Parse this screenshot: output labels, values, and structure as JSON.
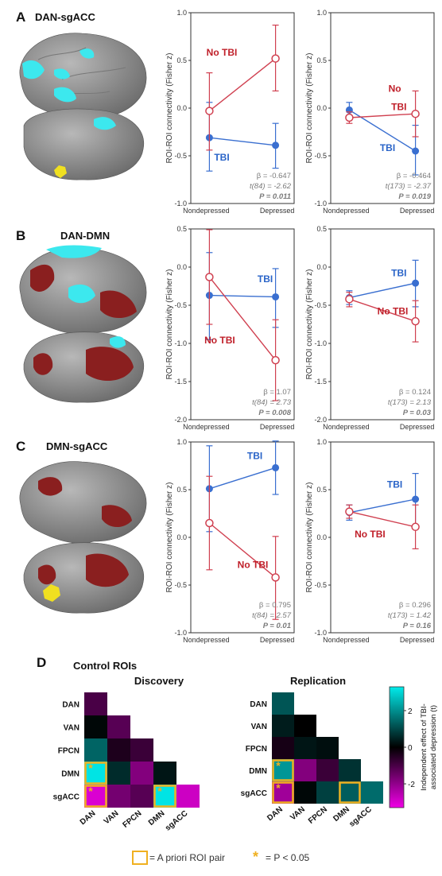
{
  "panels": {
    "A": {
      "letter": "A",
      "title": "DAN-sgACC"
    },
    "B": {
      "letter": "B",
      "title": "DAN-DMN"
    },
    "C": {
      "letter": "C",
      "title": "DMN-sgACC"
    },
    "D": {
      "letter": "D",
      "title": "Control ROIs"
    }
  },
  "colors": {
    "tbi": "#3a6fd0",
    "no_tbi": "#d04050",
    "no_tbi_label": "#c0202a",
    "tbi_label": "#2a64c8",
    "stats_text": "#7a7a7a",
    "brain_gray": "#9a9a9a",
    "cyan": "#3ce8ee",
    "dark_red": "#8a1f1f",
    "yellow": "#f0e020",
    "outline_gold": "#f0b020"
  },
  "chart_data": [
    {
      "id": "A-discovery",
      "type": "line",
      "ylabel": "ROI-ROI connectivity (Fisher z)",
      "ylim": [
        -1.0,
        1.0
      ],
      "yticks": [
        "1.0",
        "0.5",
        "0.0",
        "-0.5",
        "-1.0"
      ],
      "categories": [
        "Nondepressed",
        "Depressed"
      ],
      "series": [
        {
          "name": "TBI",
          "values": [
            -0.31,
            -0.39
          ],
          "err_low": [
            -0.66,
            -0.63
          ],
          "err_high": [
            0.06,
            -0.16
          ]
        },
        {
          "name": "No TBI",
          "values": [
            -0.03,
            0.52
          ],
          "err_low": [
            -0.44,
            0.18
          ],
          "err_high": [
            0.37,
            0.87
          ]
        }
      ],
      "label_TBI": "TBI",
      "label_NoTBI": "No TBI",
      "stats": {
        "beta": "β = -0.647",
        "t": "t(84) = -2.62",
        "p": "P = 0.011"
      }
    },
    {
      "id": "A-replication",
      "type": "line",
      "ylabel": "ROI-ROI connectivity (Fisher z)",
      "ylim": [
        -1.0,
        1.0
      ],
      "yticks": [
        "1.0",
        "0.5",
        "0.0",
        "-0.5",
        "-1.0"
      ],
      "categories": [
        "Nondepressed",
        "Depressed"
      ],
      "series": [
        {
          "name": "TBI",
          "values": [
            -0.02,
            -0.45
          ],
          "err_low": [
            -0.11,
            -0.7
          ],
          "err_high": [
            0.06,
            -0.18
          ]
        },
        {
          "name": "No TBI",
          "values": [
            -0.1,
            -0.06
          ],
          "err_low": [
            -0.16,
            -0.3
          ],
          "err_high": [
            -0.04,
            0.18
          ]
        }
      ],
      "label_TBI": "TBI",
      "label_NoTBI_1": "No",
      "label_NoTBI_2": "TBI",
      "stats": {
        "beta": "β = -0.464",
        "t": "t(173) = -2.37",
        "p": "P = 0.019"
      }
    },
    {
      "id": "B-discovery",
      "type": "line",
      "ylabel": "ROI-ROI connectivity (Fisher z)",
      "ylim": [
        -2.0,
        0.5
      ],
      "yticks": [
        "0.5",
        "0.0",
        "-0.5",
        "-1.0",
        "-1.5",
        "-2.0"
      ],
      "categories": [
        "Nondepressed",
        "Depressed"
      ],
      "series": [
        {
          "name": "TBI",
          "values": [
            -0.37,
            -0.39
          ],
          "err_low": [
            -0.95,
            -0.79
          ],
          "err_high": [
            0.19,
            -0.02
          ]
        },
        {
          "name": "No TBI",
          "values": [
            -0.13,
            -1.22
          ],
          "err_low": [
            -0.75,
            -1.75
          ],
          "err_high": [
            0.49,
            -0.69
          ]
        }
      ],
      "label_TBI": "TBI",
      "label_NoTBI": "No TBI",
      "stats": {
        "beta": "β = 1.07",
        "t": "t(84) = 2.73",
        "p": "P = 0.008"
      }
    },
    {
      "id": "B-replication",
      "type": "line",
      "ylabel": "ROI-ROI connectivity (Fisher z)",
      "ylim": [
        -2.0,
        0.5
      ],
      "yticks": [
        "0.5",
        "0.0",
        "-0.5",
        "-1.0",
        "-1.5",
        "-2.0"
      ],
      "categories": [
        "Nondepressed",
        "Depressed"
      ],
      "series": [
        {
          "name": "TBI",
          "values": [
            -0.4,
            -0.21
          ],
          "err_low": [
            -0.49,
            -0.52
          ],
          "err_high": [
            -0.31,
            0.09
          ]
        },
        {
          "name": "No TBI",
          "values": [
            -0.42,
            -0.71
          ],
          "err_low": [
            -0.52,
            -0.98
          ],
          "err_high": [
            -0.33,
            -0.44
          ]
        }
      ],
      "label_TBI": "TBI",
      "label_NoTBI": "No TBI",
      "stats": {
        "beta": "β = 0.124",
        "t": "t(173) = 2.13",
        "p": "P = 0.03"
      }
    },
    {
      "id": "C-discovery",
      "type": "line",
      "ylabel": "ROI-ROI connectivity (Fisher z)",
      "ylim": [
        -1.0,
        1.0
      ],
      "yticks": [
        "1.0",
        "0.5",
        "0.0",
        "-0.5",
        "-1.0"
      ],
      "categories": [
        "Nondepressed",
        "Depressed"
      ],
      "series": [
        {
          "name": "TBI",
          "values": [
            0.51,
            0.73
          ],
          "err_low": [
            0.06,
            0.45
          ],
          "err_high": [
            0.96,
            1.01
          ]
        },
        {
          "name": "No TBI",
          "values": [
            0.15,
            -0.42
          ],
          "err_low": [
            -0.34,
            -0.86
          ],
          "err_high": [
            0.64,
            0.01
          ]
        }
      ],
      "label_TBI": "TBI",
      "label_NoTBI": "No TBI",
      "stats": {
        "beta": "β = 0.795",
        "t": "t(84) = 2.57",
        "p": "P = 0.01"
      }
    },
    {
      "id": "C-replication",
      "type": "line",
      "ylabel": "ROI-ROI connectivity (Fisher z)",
      "ylim": [
        -1.0,
        1.0
      ],
      "yticks": [
        "1.0",
        "0.5",
        "0.0",
        "-0.5",
        "-1.0"
      ],
      "categories": [
        "Nondepressed",
        "Depressed"
      ],
      "series": [
        {
          "name": "TBI",
          "values": [
            0.26,
            0.4
          ],
          "err_low": [
            0.18,
            0.13
          ],
          "err_high": [
            0.34,
            0.67
          ]
        },
        {
          "name": "No TBI",
          "values": [
            0.27,
            0.11
          ],
          "err_low": [
            0.2,
            -0.12
          ],
          "err_high": [
            0.34,
            0.34
          ]
        }
      ],
      "label_TBI": "TBI",
      "label_NoTBI": "No TBI",
      "stats": {
        "beta": "β = 0.296",
        "t": "t(173) = 1.42",
        "p": "P = 0.16"
      }
    },
    {
      "id": "D-discovery",
      "type": "heatmap",
      "title": "Discovery",
      "rows": [
        "DAN",
        "VAN",
        "FPCN",
        "DMN",
        "sgACC"
      ],
      "cols": [
        "DAN",
        "VAN",
        "FPCN",
        "DMN",
        "sgACC"
      ],
      "values": [
        [
          -1.0
        ],
        [
          0.1,
          -1.2
        ],
        [
          1.4,
          -0.4,
          -0.8
        ],
        [
          3.2,
          0.6,
          -1.8,
          0.3
        ],
        [
          -3.0,
          -1.6,
          -1.2,
          3.2,
          -2.8
        ]
      ],
      "significant": [
        [
          3,
          0
        ],
        [
          4,
          0
        ],
        [
          4,
          3
        ]
      ],
      "a_priori": [
        [
          3,
          0
        ],
        [
          4,
          0
        ],
        [
          4,
          3
        ]
      ]
    },
    {
      "id": "D-replication",
      "type": "heatmap",
      "title": "Replication",
      "rows": [
        "DAN",
        "VAN",
        "FPCN",
        "DMN",
        "sgACC"
      ],
      "cols": [
        "DAN",
        "VAN",
        "FPCN",
        "DMN",
        "sgACC"
      ],
      "values": [
        [
          1.2
        ],
        [
          0.4,
          0.0
        ],
        [
          -0.3,
          0.3,
          0.2
        ],
        [
          2.1,
          -1.8,
          -0.8,
          0.7
        ],
        [
          -2.2,
          0.1,
          0.9,
          1.3,
          1.5
        ]
      ],
      "significant": [
        [
          3,
          0
        ],
        [
          4,
          0
        ]
      ],
      "a_priori": [
        [
          3,
          0
        ],
        [
          4,
          0
        ],
        [
          4,
          3
        ]
      ]
    }
  ],
  "colorbar": {
    "label_line1": "Independent effect of TBI-",
    "label_line2": "associated depression (t)",
    "ticks": [
      "2",
      "0",
      "-2"
    ],
    "range": [
      -3.3,
      3.3
    ]
  },
  "legend": {
    "box_text": "= A priori ROI pair",
    "star_text": "= P < 0.05",
    "star": "*"
  }
}
